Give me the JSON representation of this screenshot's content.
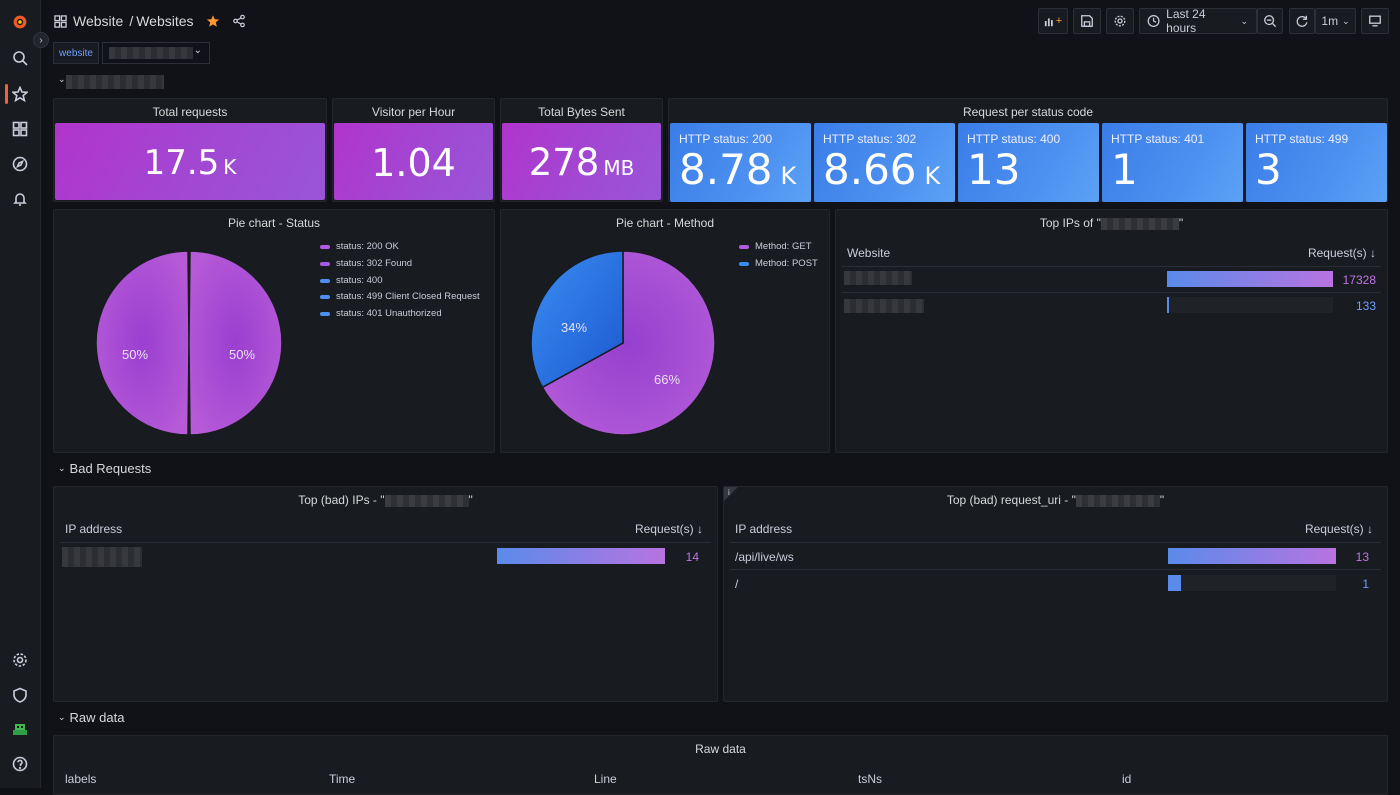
{
  "breadcrumb": {
    "folder": "Website",
    "separator": "/",
    "dashboard": "Websites"
  },
  "toolbar": {
    "time_range": "Last 24 hours",
    "refresh_interval": "1m"
  },
  "variables": {
    "website_label": "website"
  },
  "rows": {
    "bad_requests": "Bad Requests",
    "raw_data": "Raw data"
  },
  "stats": {
    "total_requests": {
      "title": "Total requests",
      "value": "17.5",
      "unit": "K"
    },
    "visitor_per_hour": {
      "title": "Visitor per Hour",
      "value": "1.04",
      "unit": ""
    },
    "total_bytes": {
      "title": "Total Bytes Sent",
      "value": "278",
      "unit": "MB"
    }
  },
  "status_panel": {
    "title": "Request per status code",
    "items": [
      {
        "label": "HTTP status: 200",
        "value": "8.78",
        "unit": "K"
      },
      {
        "label": "HTTP status: 302",
        "value": "8.66",
        "unit": "K"
      },
      {
        "label": "HTTP status: 400",
        "value": "13",
        "unit": ""
      },
      {
        "label": "HTTP status: 401",
        "value": "1",
        "unit": ""
      },
      {
        "label": "HTTP status: 499",
        "value": "3",
        "unit": ""
      }
    ]
  },
  "pie_status": {
    "title": "Pie chart - Status",
    "legend": [
      "status: 200 OK",
      "status: 302 Found",
      "status: 400",
      "status: 499 Client Closed Request",
      "status: 401 Unauthorized"
    ],
    "slice_labels": [
      "50%",
      "50%"
    ]
  },
  "pie_method": {
    "title": "Pie chart - Method",
    "legend": [
      "Method: GET",
      "Method: POST"
    ],
    "slice_labels": [
      "66%",
      "34%"
    ]
  },
  "top_ips": {
    "title_prefix": "Top IPs of \"",
    "title_suffix": "\"",
    "col_website": "Website",
    "col_requests": "Request(s)",
    "rows": [
      {
        "value": "17328",
        "fraction": 1.0
      },
      {
        "value": "133",
        "fraction": 0.008
      }
    ]
  },
  "bad_ips": {
    "title_prefix": "Top (bad) IPs - \"",
    "title_suffix": "\"",
    "col_ip": "IP address",
    "col_requests": "Request(s)",
    "rows": [
      {
        "value": "14",
        "fraction": 1.0
      }
    ]
  },
  "bad_uri": {
    "title_prefix": "Top (bad) request_uri - \"",
    "title_suffix": "\"",
    "col_ip": "IP address",
    "col_requests": "Request(s)",
    "rows": [
      {
        "uri": "/api/live/ws",
        "value": "13",
        "fraction": 1.0
      },
      {
        "uri": "/",
        "value": "1",
        "fraction": 0.077
      }
    ]
  },
  "raw_data": {
    "title": "Raw data",
    "columns": [
      "labels",
      "Time",
      "Line",
      "tsNs",
      "id"
    ]
  },
  "colors": {
    "purple": "#b134cc",
    "blue": "#4c8ff0",
    "bg": "#111217",
    "panel": "#181b1f"
  }
}
